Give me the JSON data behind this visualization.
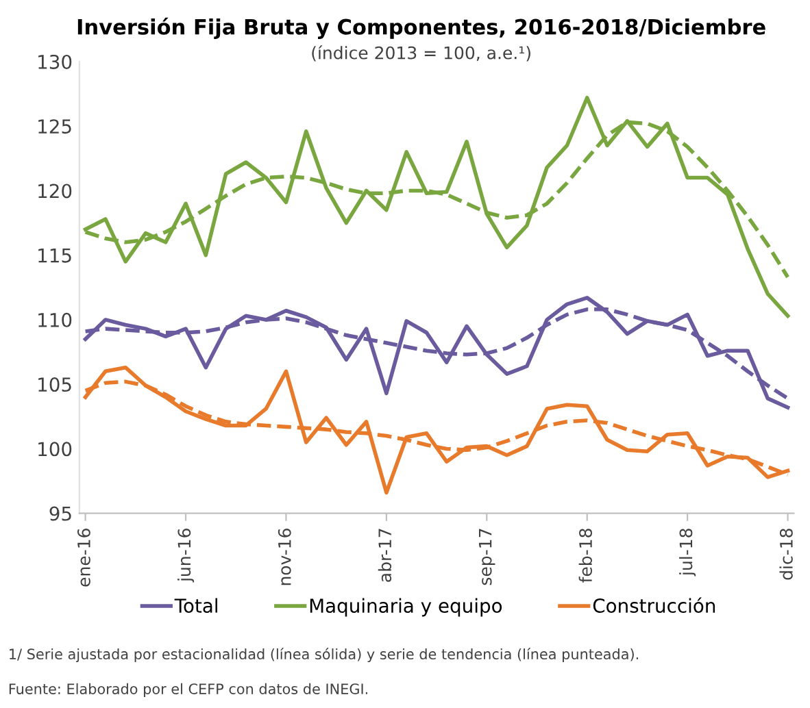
{
  "chart_data": {
    "type": "line",
    "title": "Inversión Fija Bruta y Componentes, 2016-2018/Diciembre",
    "subtitle": "(índice 2013 = 100, a.e.¹)",
    "categories": [
      "ene-16",
      null,
      null,
      null,
      null,
      "jun-16",
      null,
      null,
      null,
      null,
      "nov-16",
      null,
      null,
      null,
      null,
      "abr-17",
      null,
      null,
      null,
      null,
      "sep-17",
      null,
      null,
      null,
      null,
      "feb-18",
      null,
      null,
      null,
      null,
      "jul-18",
      null,
      null,
      null,
      null,
      "dic-18"
    ],
    "series": [
      {
        "name": "Total",
        "color": "#6a5a9e",
        "line_style": "solid",
        "values": [
          108.5,
          110,
          109.6,
          109.3,
          108.7,
          109.3,
          106.3,
          109.3,
          110.3,
          110,
          110.7,
          110.2,
          109.4,
          106.9,
          109.3,
          104.3,
          109.9,
          109,
          106.7,
          109.5,
          107.3,
          105.8,
          106.4,
          110,
          111.2,
          111.7,
          110.6,
          108.9,
          109.9,
          109.6,
          110.4,
          107.2,
          107.6,
          107.6,
          103.9,
          103.2
        ]
      },
      {
        "color": "#6a5a9e",
        "line_style": "dashed",
        "values": [
          109.1,
          109.3,
          109.2,
          109.1,
          109,
          109,
          109.1,
          109.4,
          109.8,
          110,
          110.1,
          109.8,
          109.3,
          108.8,
          108.5,
          108.2,
          107.9,
          107.6,
          107.4,
          107.3,
          107.4,
          107.8,
          108.6,
          109.6,
          110.4,
          110.8,
          110.8,
          110.4,
          109.9,
          109.6,
          109.2,
          108.2,
          107.2,
          106,
          104.9,
          103.9
        ]
      },
      {
        "name": "Maquinaria y equipo",
        "color": "#7aa640",
        "line_style": "solid",
        "values": [
          117,
          117.8,
          114.5,
          116.7,
          116,
          119,
          115,
          121.3,
          122.2,
          121,
          119.1,
          124.6,
          120.2,
          117.5,
          120,
          118.5,
          123,
          119.8,
          119.9,
          123.8,
          118.2,
          115.6,
          117.3,
          121.8,
          123.5,
          127.2,
          123.5,
          125.4,
          123.4,
          125.2,
          121,
          121,
          119.7,
          115.5,
          112,
          110.3
        ]
      },
      {
        "color": "#7aa640",
        "line_style": "dashed",
        "values": [
          116.8,
          116.3,
          116,
          116.2,
          116.8,
          117.6,
          118.6,
          119.6,
          120.5,
          121,
          121.1,
          121,
          120.6,
          120.1,
          119.8,
          119.8,
          120,
          120,
          119.7,
          119,
          118.3,
          117.9,
          118.1,
          119,
          120.6,
          122.5,
          124.3,
          125.3,
          125.2,
          124.6,
          123.4,
          121.8,
          120,
          118,
          115.8,
          113.3
        ]
      },
      {
        "name": "Construcción",
        "color": "#e87a2c",
        "line_style": "solid",
        "values": [
          104,
          106,
          106.3,
          104.9,
          104,
          102.9,
          102.3,
          101.8,
          101.8,
          103.1,
          106,
          100.5,
          102.4,
          100.3,
          102.1,
          96.6,
          100.9,
          101.2,
          99,
          100.1,
          100.2,
          99.5,
          100.2,
          103.1,
          103.4,
          103.3,
          100.7,
          99.9,
          99.8,
          101.1,
          101.2,
          98.7,
          99.4,
          99.3,
          97.8,
          98.3
        ]
      },
      {
        "color": "#e87a2c",
        "line_style": "dashed",
        "values": [
          104.5,
          105.1,
          105.2,
          104.9,
          104.2,
          103.3,
          102.6,
          102.1,
          101.9,
          101.8,
          101.7,
          101.6,
          101.5,
          101.3,
          101.2,
          101,
          100.7,
          100.3,
          100,
          99.9,
          100.1,
          100.6,
          101.2,
          101.8,
          102.1,
          102.2,
          102,
          101.5,
          101,
          100.6,
          100.2,
          99.9,
          99.5,
          99.2,
          98.6,
          98
        ]
      }
    ],
    "ylim": [
      95,
      130
    ],
    "yticks": [
      95,
      100,
      105,
      110,
      115,
      120,
      125,
      130
    ],
    "grid": false,
    "legend": "bottom",
    "marker": "none",
    "annotations": [
      "1/ Serie ajustada por estacionalidad (línea sólida) y serie de tendencia (línea punteada).",
      "Fuente: Elaborado por el CEFP con datos de INEGI."
    ]
  }
}
